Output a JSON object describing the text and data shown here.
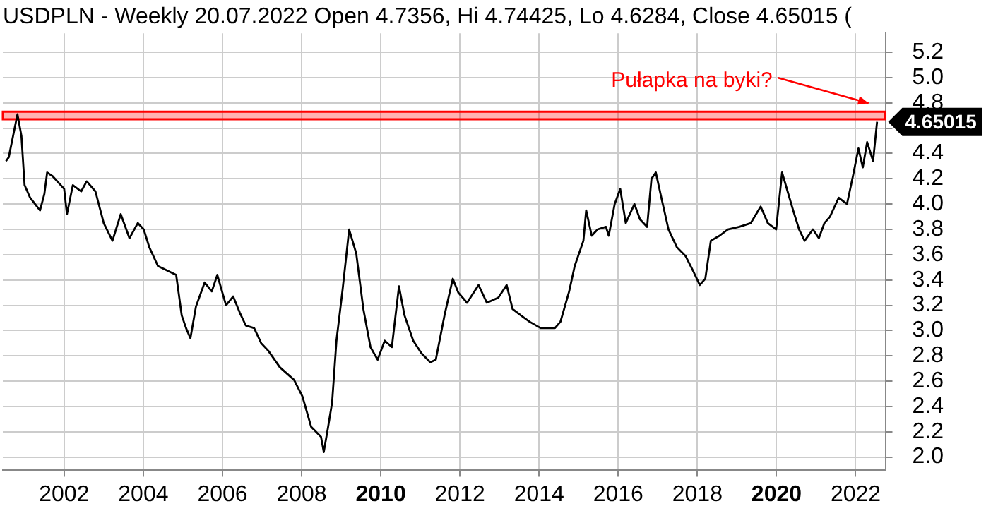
{
  "chart_data": {
    "type": "line",
    "title": "USDPLN - Weekly 20.07.2022 Open 4.7356, Hi 4.74425, Lo 4.6284, Close 4.65015 (",
    "series": [
      {
        "color": "#000000",
        "x": [
          2000.53,
          2000.6,
          2000.82,
          2000.92,
          2001.0,
          2001.14,
          2001.39,
          2001.5,
          2001.57,
          2001.71,
          2002.0,
          2002.07,
          2002.22,
          2002.43,
          2002.57,
          2002.79,
          2003.0,
          2003.22,
          2003.43,
          2003.65,
          2003.86,
          2004.01,
          2004.15,
          2004.37,
          2004.83,
          2004.97,
          2005.08,
          2005.19,
          2005.33,
          2005.55,
          2005.73,
          2005.87,
          2006.09,
          2006.27,
          2006.44,
          2006.59,
          2006.8,
          2006.98,
          2007.16,
          2007.45,
          2007.81,
          2008.02,
          2008.24,
          2008.49,
          2008.56,
          2008.67,
          2008.77,
          2008.88,
          2009.03,
          2009.17,
          2009.2,
          2009.38,
          2009.56,
          2009.74,
          2009.92,
          2010.1,
          2010.28,
          2010.46,
          2010.6,
          2010.82,
          2011.03,
          2011.25,
          2011.39,
          2011.61,
          2011.82,
          2011.96,
          2012.18,
          2012.47,
          2012.68,
          2012.97,
          2013.18,
          2013.33,
          2013.54,
          2013.76,
          2014.04,
          2014.4,
          2014.54,
          2014.76,
          2014.9,
          2015.12,
          2015.19,
          2015.33,
          2015.48,
          2015.69,
          2015.76,
          2015.91,
          2016.05,
          2016.19,
          2016.41,
          2016.55,
          2016.73,
          2016.84,
          2016.95,
          2017.09,
          2017.27,
          2017.48,
          2017.7,
          2017.91,
          2018.06,
          2018.2,
          2018.34,
          2018.56,
          2018.77,
          2019.06,
          2019.35,
          2019.6,
          2019.78,
          2019.99,
          2020.14,
          2020.28,
          2020.42,
          2020.57,
          2020.71,
          2020.92,
          2021.07,
          2021.21,
          2021.35,
          2021.57,
          2021.78,
          2021.93,
          2022.07,
          2022.18,
          2022.29,
          2022.44,
          2022.54
        ],
        "values": [
          4.34,
          4.37,
          4.71,
          4.54,
          4.15,
          4.05,
          3.95,
          4.08,
          4.25,
          4.22,
          4.12,
          3.92,
          4.15,
          4.1,
          4.18,
          4.1,
          3.85,
          3.71,
          3.92,
          3.73,
          3.85,
          3.8,
          3.66,
          3.51,
          3.44,
          3.12,
          3.02,
          2.94,
          3.19,
          3.38,
          3.31,
          3.44,
          3.2,
          3.27,
          3.14,
          3.04,
          3.02,
          2.9,
          2.84,
          2.71,
          2.61,
          2.48,
          2.24,
          2.16,
          2.04,
          2.24,
          2.43,
          2.92,
          3.31,
          3.71,
          3.8,
          3.61,
          3.17,
          2.87,
          2.77,
          2.92,
          2.87,
          3.35,
          3.12,
          2.92,
          2.82,
          2.75,
          2.77,
          3.12,
          3.41,
          3.3,
          3.22,
          3.36,
          3.22,
          3.26,
          3.36,
          3.17,
          3.12,
          3.07,
          3.02,
          3.02,
          3.07,
          3.31,
          3.51,
          3.71,
          3.95,
          3.75,
          3.8,
          3.82,
          3.75,
          4.0,
          4.12,
          3.85,
          4.0,
          3.88,
          3.82,
          4.2,
          4.25,
          4.05,
          3.8,
          3.66,
          3.59,
          3.46,
          3.36,
          3.41,
          3.71,
          3.75,
          3.8,
          3.82,
          3.85,
          3.98,
          3.85,
          3.8,
          4.25,
          4.1,
          3.95,
          3.8,
          3.71,
          3.8,
          3.73,
          3.85,
          3.9,
          4.05,
          4.0,
          4.22,
          4.44,
          4.29,
          4.49,
          4.34,
          4.65015
        ]
      }
    ],
    "xlim": [
      2000.45,
      2022.75
    ],
    "xticks": [
      2002,
      2004,
      2006,
      2008,
      2010,
      2012,
      2014,
      2016,
      2018,
      2020,
      2022
    ],
    "ylim": [
      1.9,
      5.35
    ],
    "yticks": [
      {
        "value": 2,
        "label": "2.0"
      },
      {
        "value": 2.2,
        "label": "2.2"
      },
      {
        "value": 2.4,
        "label": "2.4"
      },
      {
        "value": 2.6,
        "label": "2.6"
      },
      {
        "value": 2.8,
        "label": "2.8"
      },
      {
        "value": 3,
        "label": "3.0"
      },
      {
        "value": 3.2,
        "label": "3.2"
      },
      {
        "value": 3.4,
        "label": "3.4"
      },
      {
        "value": 3.6,
        "label": "3.6"
      },
      {
        "value": 3.8,
        "label": "3.8"
      },
      {
        "value": 4,
        "label": "4.0"
      },
      {
        "value": 4.2,
        "label": "4.2"
      },
      {
        "value": 4.4,
        "label": "4.4"
      },
      {
        "value": 4.6,
        "label": null
      },
      {
        "value": 4.8,
        "label": "4.8"
      },
      {
        "value": 5,
        "label": "5.0"
      },
      {
        "value": 5.2,
        "label": "5.2"
      }
    ],
    "grid": true,
    "legend": false,
    "marker": "none",
    "line_style": "solid",
    "bands": [
      {
        "axis": "y",
        "from": 4.67,
        "to": 4.73,
        "color": "#ff0000"
      }
    ],
    "annotations": [
      "Pułapka na byki?",
      "4.65015"
    ]
  }
}
